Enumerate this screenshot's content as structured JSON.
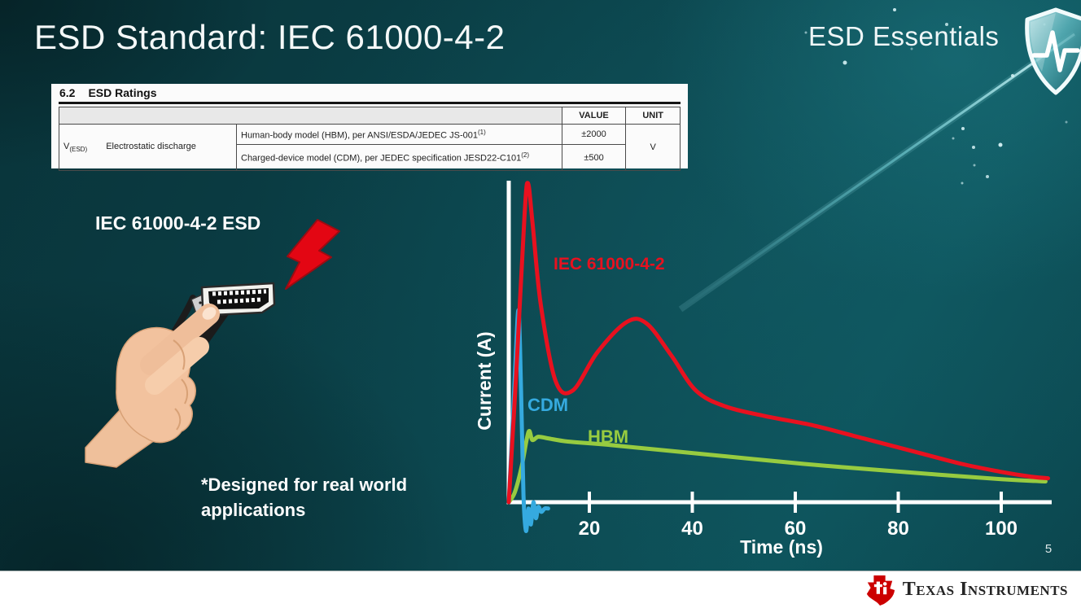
{
  "slide": {
    "title": "ESD Standard: IEC 61000-4-2",
    "brand": "ESD Essentials",
    "page_number": "5",
    "illustration_label": "IEC 61000-4-2 ESD",
    "footnote": {
      "line1": "*Designed for real world",
      "line2": "applications"
    }
  },
  "ratings_table": {
    "section_number": "6.2",
    "section_title": "ESD Ratings",
    "headers": {
      "value": "VALUE",
      "unit": "UNIT"
    },
    "symbol": "V",
    "symbol_subscript": "(ESD)",
    "parameter": "Electrostatic discharge",
    "rows": [
      {
        "description": "Human-body model (HBM), per ANSI/ESDA/JEDEC JS-001",
        "superscript": "(1)",
        "value": "±2000"
      },
      {
        "description": "Charged-device model (CDM), per JEDEC specification JESD22-C101",
        "superscript": "(2)",
        "value": "±500"
      }
    ],
    "unit": "V"
  },
  "chart_data": {
    "type": "line",
    "title": "",
    "xlabel": "Time (ns)",
    "ylabel": "Current (A)",
    "xlim": [
      0,
      110
    ],
    "x_ticks": [
      20,
      40,
      60,
      80,
      100
    ],
    "y_axis_ticks": "none (unlabeled relative current axis)",
    "grid": false,
    "legend": "inline colored labels next to curves",
    "series": [
      {
        "name": "IEC 61000-4-2",
        "color": "#e8111f",
        "points": [
          [
            0,
            0
          ],
          [
            1.5,
            0.4
          ],
          [
            3.2,
            0.9
          ],
          [
            3.9,
            1.0
          ],
          [
            4.8,
            0.88
          ],
          [
            6.5,
            0.62
          ],
          [
            9.5,
            0.38
          ],
          [
            13,
            0.35
          ],
          [
            18,
            0.47
          ],
          [
            24,
            0.565
          ],
          [
            28,
            0.56
          ],
          [
            33,
            0.46
          ],
          [
            38,
            0.35
          ],
          [
            44,
            0.3
          ],
          [
            52,
            0.27
          ],
          [
            62,
            0.24
          ],
          [
            72,
            0.2
          ],
          [
            82,
            0.16
          ],
          [
            92,
            0.12
          ],
          [
            100,
            0.095
          ],
          [
            106,
            0.08
          ],
          [
            109.5,
            0.075
          ]
        ]
      },
      {
        "name": "CDM",
        "color": "#35aadf",
        "points": [
          [
            0,
            0
          ],
          [
            0.7,
            0.22
          ],
          [
            1.4,
            0.45
          ],
          [
            2,
            0.6
          ],
          [
            2.5,
            0.35
          ],
          [
            3,
            0.02
          ],
          [
            3.5,
            -0.09
          ],
          [
            4,
            -0.02
          ],
          [
            4.5,
            -0.07
          ],
          [
            5,
            0.0
          ],
          [
            5.5,
            -0.05
          ],
          [
            6,
            -0.015
          ],
          [
            6.6,
            -0.03
          ],
          [
            7.3,
            -0.02
          ],
          [
            8,
            -0.02
          ]
        ]
      },
      {
        "name": "HBM",
        "color": "#97cb40",
        "points": [
          [
            0,
            0
          ],
          [
            1.2,
            0.03
          ],
          [
            2.6,
            0.11
          ],
          [
            4,
            0.22
          ],
          [
            4.8,
            0.195
          ],
          [
            6,
            0.205
          ],
          [
            8,
            0.2
          ],
          [
            12,
            0.19
          ],
          [
            20,
            0.18
          ],
          [
            40,
            0.15
          ],
          [
            60,
            0.12
          ],
          [
            80,
            0.095
          ],
          [
            100,
            0.072
          ],
          [
            109,
            0.065
          ]
        ]
      }
    ]
  },
  "footer": {
    "logo_text": "Texas Instruments"
  },
  "icons": {
    "brand_icon": "shield-pulse-icon",
    "strike_icon": "lightning-bolt-icon",
    "connector_icon": "hdmi-connector",
    "logo_icon": "ti-bug-icon"
  },
  "colors": {
    "background_dark_teal": "#09343a",
    "background_light_teal": "#0d535b",
    "accent_red": "#e8111f",
    "accent_blue": "#35aadf",
    "accent_green": "#97cb40",
    "ti_red": "#cc0000",
    "footer_background": "#ffffff"
  }
}
